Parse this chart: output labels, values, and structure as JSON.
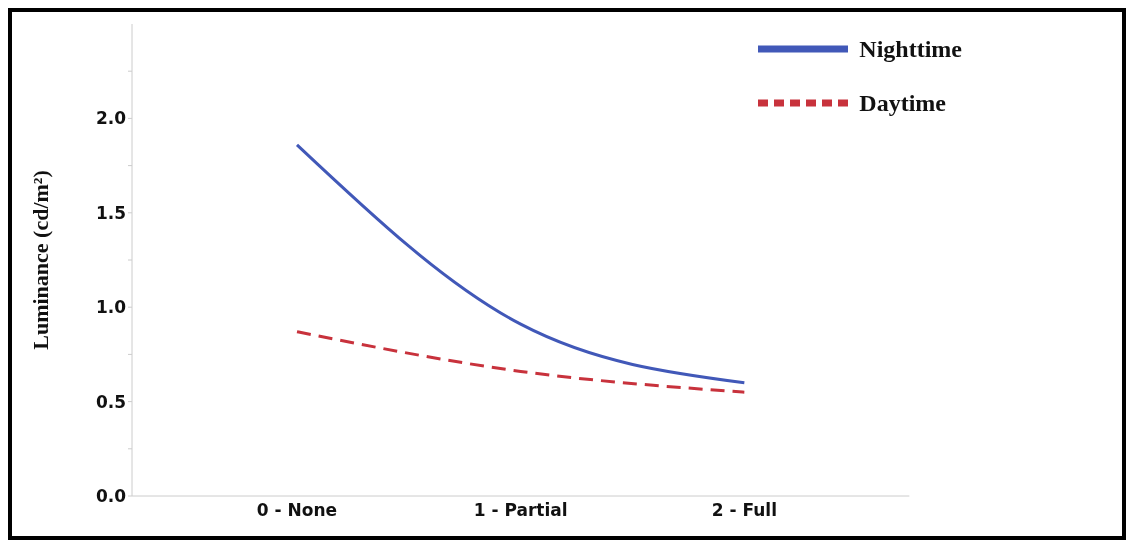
{
  "chart_data": {
    "type": "line",
    "ylabel": "Luminance (cd/m²)",
    "categories": [
      "0 - None",
      "1 - Partial",
      "2 - Full"
    ],
    "series": [
      {
        "name": "Nighttime",
        "color": "#4158b8",
        "values": [
          1.86,
          0.91,
          0.6
        ],
        "line_style": "solid"
      },
      {
        "name": "Daytime",
        "color": "#c8323c",
        "values": [
          0.87,
          0.66,
          0.55
        ],
        "line_style": "dashed"
      }
    ],
    "ylim": [
      0,
      2.5
    ],
    "yticks": [
      {
        "value": 0,
        "label": "0.0"
      },
      {
        "value": 0.25,
        "label": null
      },
      {
        "value": 0.5,
        "label": "0.5"
      },
      {
        "value": 0.75,
        "label": null
      },
      {
        "value": 1,
        "label": "1.0"
      },
      {
        "value": 1.25,
        "label": null
      },
      {
        "value": 1.5,
        "label": "1.5"
      },
      {
        "value": 1.75,
        "label": null
      },
      {
        "value": 2,
        "label": "2.0"
      },
      {
        "value": 2.25,
        "label": null
      }
    ],
    "grid": false,
    "legend": "top right",
    "marker": "none"
  }
}
